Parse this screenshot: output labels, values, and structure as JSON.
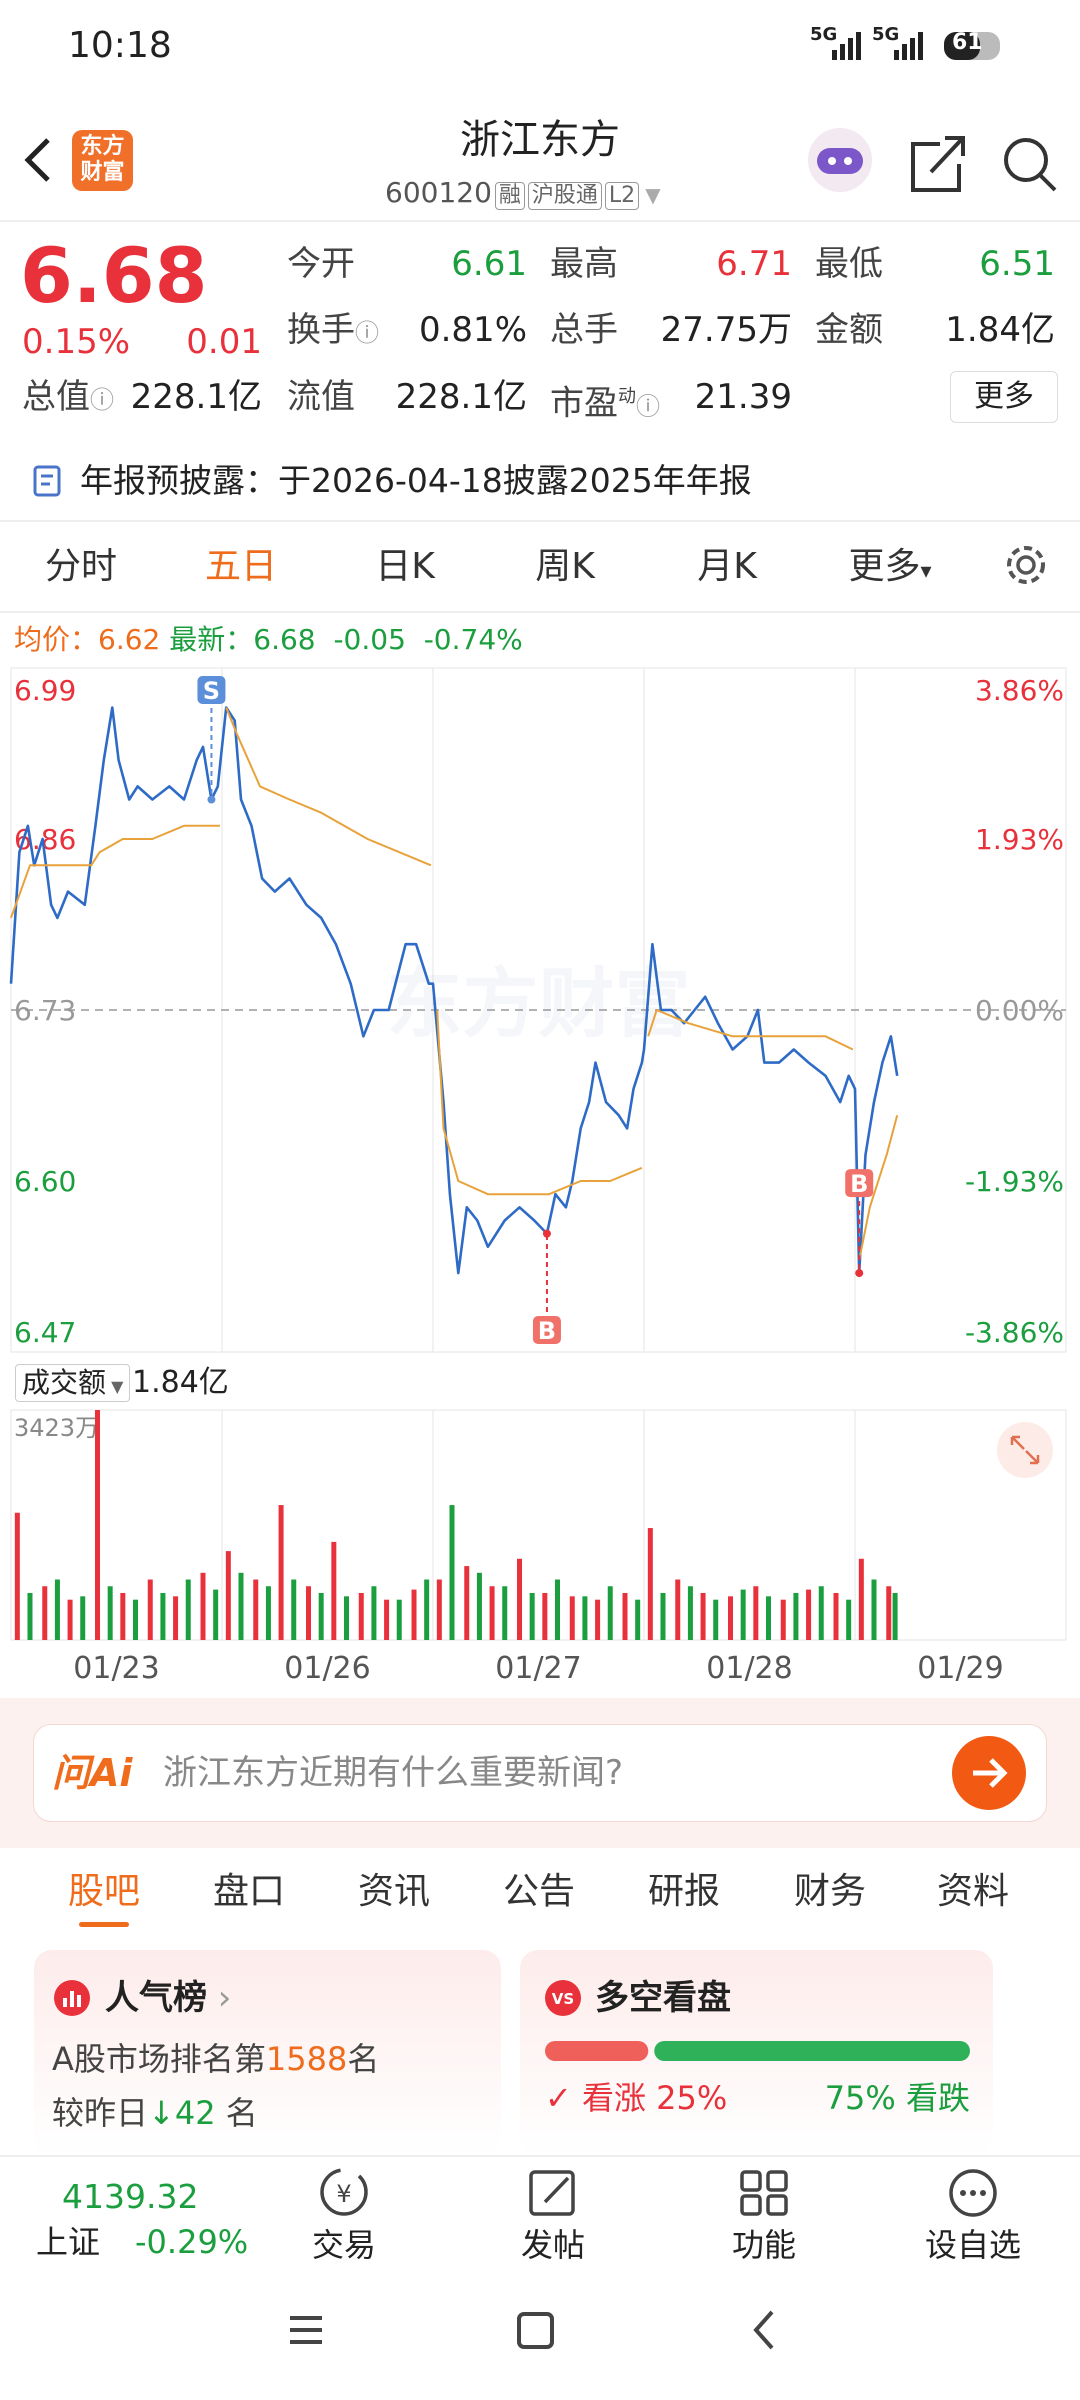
{
  "status": {
    "time": "10:18",
    "signal": [
      "5G",
      "5G"
    ],
    "battery": "61"
  },
  "header": {
    "logo": [
      "东方",
      "财富"
    ],
    "title": "浙江东方",
    "code": "600120",
    "tags": [
      "融",
      "沪股通",
      "L2"
    ]
  },
  "quote": {
    "price": "6.68",
    "change_pct": "0.15%",
    "change": "0.01",
    "stats": [
      [
        {
          "label": "今开",
          "value": "6.61"
        },
        {
          "label": "最高",
          "value": "6.71"
        },
        {
          "label": "最低",
          "value": "6.51"
        }
      ],
      [
        {
          "label": "换手",
          "value": "0.81%"
        },
        {
          "label": "总手",
          "value": "27.75万"
        },
        {
          "label": "金额",
          "value": "1.84亿"
        }
      ],
      [
        {
          "label": "总值",
          "value": "228.1亿"
        },
        {
          "label": "流值",
          "value": "228.1亿"
        },
        {
          "label": "市盈",
          "sup": "动",
          "value": "21.39"
        }
      ]
    ],
    "more": "更多"
  },
  "notice": {
    "label": "年报预披露：",
    "text": "于2026-04-18披露2025年年报"
  },
  "tabs": {
    "items": [
      "分时",
      "五日",
      "日K",
      "周K",
      "月K",
      "更多"
    ],
    "active": 1
  },
  "legend": {
    "avg_label": "均价：",
    "avg": "6.62",
    "last_label": "最新：",
    "last": "6.68",
    "change": "-0.05",
    "change_pct": "-0.74%"
  },
  "chart_data": {
    "type": "line",
    "watermark": "东方财富",
    "xlim": [
      0,
      5
    ],
    "ylim": [
      6.47,
      6.99
    ],
    "y2lim": [
      -3.86,
      3.86
    ],
    "prev_close": 6.73,
    "yticks": [
      6.99,
      6.86,
      6.73,
      {
        "value": 6.6,
        "label": "6.60"
      },
      6.47
    ],
    "y2ticks": [
      {
        "value": 3.86,
        "label": "3.86%"
      },
      {
        "value": 1.93,
        "label": "1.93%"
      },
      {
        "value": 0,
        "label": "0.00%"
      },
      {
        "value": -1.93,
        "label": "-1.93%"
      },
      {
        "value": -3.86,
        "label": "-3.86%"
      }
    ],
    "series": [
      {
        "color": "#2e6bc6",
        "x": [
          0,
          0.04,
          0.08,
          0.11,
          0.15,
          0.19,
          0.22,
          0.27,
          0.35,
          0.4,
          0.44,
          0.48,
          0.51,
          0.56,
          0.6,
          0.67,
          0.75,
          0.82,
          0.88,
          0.91,
          0.95,
          0.98,
          1.02,
          1.06,
          1.09,
          1.14,
          1.19,
          1.25,
          1.32,
          1.4,
          1.47,
          1.54,
          1.61,
          1.67,
          1.72,
          1.79,
          1.87,
          1.92,
          1.98,
          2.0,
          2.05,
          2.08,
          2.12,
          2.16,
          2.21,
          2.26,
          2.34,
          2.41,
          2.48,
          2.54,
          2.58,
          2.63,
          2.66,
          2.7,
          2.74,
          2.77,
          2.82,
          2.88,
          2.92,
          2.95,
          2.99,
          3.0,
          3.04,
          3.08,
          3.13,
          3.19,
          3.24,
          3.29,
          3.35,
          3.42,
          3.49,
          3.54,
          3.57,
          3.64,
          3.71,
          3.78,
          3.86,
          3.93,
          3.97,
          4.0,
          4.02,
          4.05,
          4.09,
          4.13,
          4.17,
          4.2
        ],
        "values": [
          6.75,
          6.85,
          6.87,
          6.84,
          6.86,
          6.81,
          6.8,
          6.82,
          6.81,
          6.87,
          6.92,
          6.96,
          6.92,
          6.89,
          6.9,
          6.89,
          6.9,
          6.89,
          6.92,
          6.93,
          6.89,
          6.9,
          6.96,
          6.95,
          6.89,
          6.87,
          6.83,
          6.82,
          6.83,
          6.81,
          6.8,
          6.78,
          6.75,
          6.71,
          6.73,
          6.73,
          6.78,
          6.78,
          6.75,
          6.75,
          6.66,
          6.59,
          6.53,
          6.58,
          6.57,
          6.55,
          6.57,
          6.58,
          6.57,
          6.56,
          6.59,
          6.58,
          6.6,
          6.64,
          6.66,
          6.69,
          6.66,
          6.65,
          6.64,
          6.67,
          6.69,
          6.7,
          6.78,
          6.73,
          6.73,
          6.72,
          6.73,
          6.74,
          6.72,
          6.7,
          6.71,
          6.73,
          6.69,
          6.69,
          6.7,
          6.69,
          6.68,
          6.66,
          6.68,
          6.67,
          6.53,
          6.62,
          6.66,
          6.69,
          6.71,
          6.68
        ]
      },
      {
        "color": "#e8a23a",
        "x": [
          0,
          0.09,
          0.24,
          0.38,
          0.42,
          0.53,
          0.67,
          0.82,
          0.99,
          null,
          1.02,
          1.07,
          1.18,
          1.32,
          1.47,
          1.69,
          1.99,
          null,
          2.02,
          2.05,
          2.12,
          2.26,
          2.41,
          2.55,
          2.7,
          2.84,
          2.99,
          null,
          3.02,
          3.06,
          3.21,
          3.42,
          3.64,
          3.86,
          3.99,
          null,
          4.02,
          4.07,
          4.15,
          4.2
        ],
        "values": [
          6.8,
          6.84,
          6.84,
          6.84,
          6.85,
          6.86,
          6.86,
          6.87,
          6.87,
          null,
          6.96,
          6.94,
          6.9,
          6.89,
          6.88,
          6.86,
          6.84,
          null,
          6.73,
          6.64,
          6.6,
          6.59,
          6.59,
          6.59,
          6.6,
          6.6,
          6.61,
          null,
          6.71,
          6.73,
          6.72,
          6.71,
          6.71,
          6.71,
          6.7,
          null,
          6.54,
          6.58,
          6.62,
          6.65
        ]
      }
    ],
    "markers": [
      {
        "label": "S",
        "x": 0.95,
        "value": 6.89
      },
      {
        "label": "B",
        "x": 2.54,
        "value": 6.56
      },
      {
        "label": "B",
        "x": 4.02,
        "value": 6.53
      }
    ],
    "dates": [
      "01/23",
      "01/26",
      "01/27",
      "01/28",
      "01/29"
    ]
  },
  "volume_data": {
    "type": "bar",
    "title": "成交额",
    "total": "1.84亿",
    "ylim": [
      0,
      3423
    ],
    "yticks": [
      {
        "value": 3423,
        "label": "3423万"
      }
    ],
    "series": [
      {
        "color": "#e8313b",
        "x": [
          0.03,
          0.16,
          0.28,
          0.41,
          0.53,
          0.66,
          0.78,
          0.91,
          1.03,
          1.16,
          1.28,
          1.41,
          1.53,
          1.66,
          1.78,
          1.91,
          2.03,
          2.16,
          2.28,
          2.41,
          2.53,
          2.66,
          2.78,
          2.91,
          3.03,
          3.16,
          3.28,
          3.41,
          3.53,
          3.66,
          3.78,
          3.91,
          4.03,
          4.16
        ],
        "values": [
          1894,
          800,
          600,
          3423,
          700,
          900,
          650,
          1000,
          1323,
          900,
          2008,
          800,
          1460,
          700,
          600,
          750,
          900,
          1100,
          800,
          1209,
          700,
          650,
          600,
          700,
          1666,
          900,
          700,
          650,
          800,
          600,
          750,
          700,
          1209,
          800
        ]
      },
      {
        "color": "#1b9e3e",
        "x": [
          0.09,
          0.22,
          0.34,
          0.47,
          0.59,
          0.72,
          0.84,
          0.97,
          1.09,
          1.22,
          1.34,
          1.47,
          1.59,
          1.72,
          1.84,
          1.97,
          2.09,
          2.22,
          2.34,
          2.47,
          2.59,
          2.72,
          2.84,
          2.97,
          3.09,
          3.22,
          3.34,
          3.47,
          3.59,
          3.72,
          3.84,
          3.97,
          4.09,
          4.19
        ],
        "values": [
          700,
          900,
          650,
          800,
          600,
          700,
          900,
          750,
          1000,
          800,
          900,
          700,
          650,
          800,
          600,
          900,
          2008,
          1000,
          800,
          700,
          900,
          650,
          800,
          600,
          700,
          800,
          600,
          750,
          650,
          700,
          800,
          600,
          900,
          700
        ]
      }
    ]
  },
  "ai": {
    "logo": "问Ai",
    "prompt": "浙江东方近期有什么重要新闻?"
  },
  "sections": {
    "items": [
      "股吧",
      "盘口",
      "资讯",
      "公告",
      "研报",
      "财务",
      "资料"
    ],
    "active": 0
  },
  "cards": {
    "popularity": {
      "title": "人气榜",
      "rank_prefix": "A股市场排名第",
      "rank": "1588",
      "rank_suffix": "名",
      "change_prefix": "较昨日",
      "change": "42",
      "change_suffix": "名"
    },
    "sentiment": {
      "title": "多空看盘",
      "bull_label": "看涨",
      "bull": {
        "value": 25,
        "label": "25%"
      },
      "bear": {
        "value": 75,
        "label": "75%"
      },
      "bear_label": "看跌"
    }
  },
  "bottom_bar": {
    "index_value": "4139.32",
    "index_name": "上证",
    "index_change": "-0.29%",
    "items": [
      "交易",
      "发帖",
      "功能",
      "设自选"
    ]
  }
}
